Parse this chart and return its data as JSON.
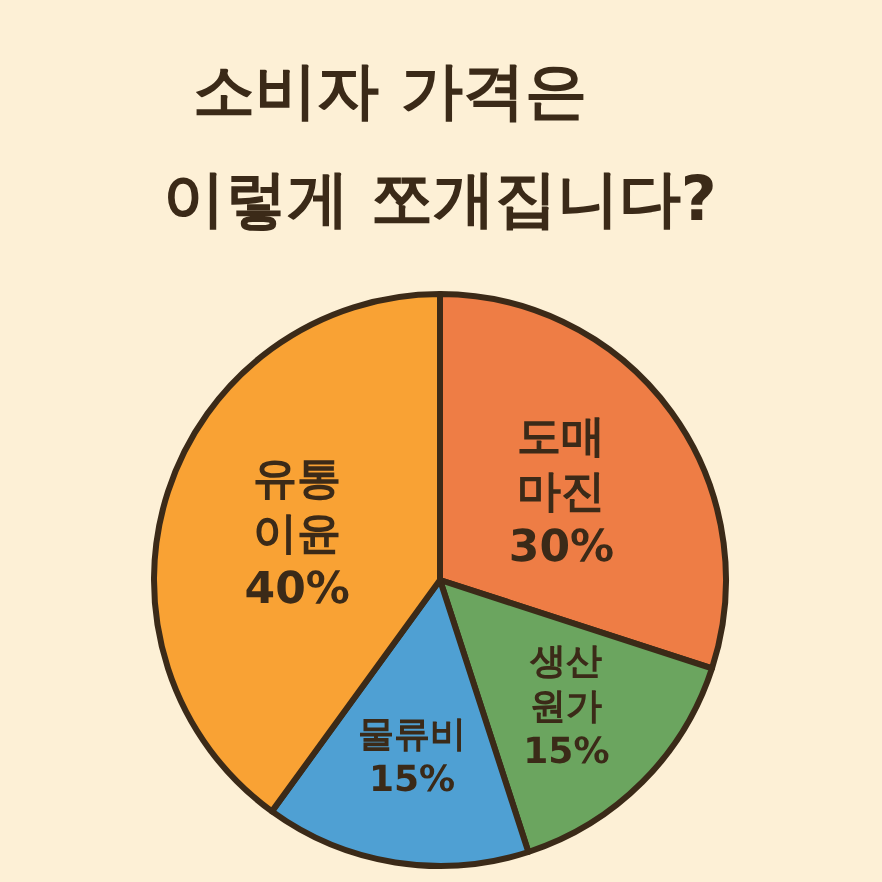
{
  "chart_data": {
    "type": "pie",
    "title": "소비자 가격은 이렇게 쪼개집니다?",
    "categories": [
      "도매 마진",
      "생산 원가",
      "물류비",
      "유통 이윤"
    ],
    "values": [
      30,
      15,
      15,
      40
    ],
    "value_labels": [
      "30%",
      "15%",
      "15%",
      "40%"
    ],
    "colors": [
      "#ee7d45",
      "#6ba55f",
      "#4fa0d3",
      "#f9a234"
    ]
  }
}
